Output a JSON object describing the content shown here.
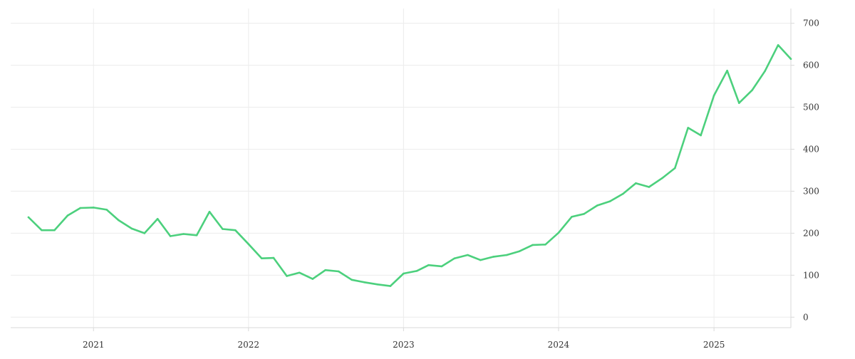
{
  "chart_data": {
    "type": "line",
    "x_tick_labels": [
      "2021",
      "2022",
      "2023",
      "2024",
      "2025"
    ],
    "y_tick_labels": [
      "0",
      "100",
      "200",
      "300",
      "400",
      "500",
      "600",
      "700"
    ],
    "y_ticks": [
      0,
      100,
      200,
      300,
      400,
      500,
      600,
      700
    ],
    "ylim": [
      -25,
      735
    ],
    "xlim": [
      "2020-06-20",
      "2025-07-01"
    ],
    "y_axis_position": "right",
    "grid": true,
    "series": [
      {
        "color": "#4cd07d",
        "points": [
          [
            "2020-08-01",
            238
          ],
          [
            "2020-09-01",
            207
          ],
          [
            "2020-10-01",
            207
          ],
          [
            "2020-11-01",
            242
          ],
          [
            "2020-12-01",
            260
          ],
          [
            "2021-01-01",
            261
          ],
          [
            "2021-02-01",
            256
          ],
          [
            "2021-03-01",
            231
          ],
          [
            "2021-04-01",
            211
          ],
          [
            "2021-05-01",
            200
          ],
          [
            "2021-06-01",
            234
          ],
          [
            "2021-07-01",
            193
          ],
          [
            "2021-08-01",
            198
          ],
          [
            "2021-09-01",
            195
          ],
          [
            "2021-10-01",
            251
          ],
          [
            "2021-11-01",
            210
          ],
          [
            "2021-12-01",
            207
          ],
          [
            "2022-01-01",
            174
          ],
          [
            "2022-02-01",
            140
          ],
          [
            "2022-03-01",
            141
          ],
          [
            "2022-04-01",
            98
          ],
          [
            "2022-05-01",
            106
          ],
          [
            "2022-06-01",
            91
          ],
          [
            "2022-07-01",
            112
          ],
          [
            "2022-08-01",
            109
          ],
          [
            "2022-09-01",
            89
          ],
          [
            "2022-10-01",
            83
          ],
          [
            "2022-11-01",
            78
          ],
          [
            "2022-12-01",
            74
          ],
          [
            "2023-01-01",
            104
          ],
          [
            "2023-02-01",
            110
          ],
          [
            "2023-03-01",
            124
          ],
          [
            "2023-04-01",
            121
          ],
          [
            "2023-05-01",
            140
          ],
          [
            "2023-06-01",
            148
          ],
          [
            "2023-07-01",
            136
          ],
          [
            "2023-08-01",
            144
          ],
          [
            "2023-09-01",
            148
          ],
          [
            "2023-10-01",
            157
          ],
          [
            "2023-11-01",
            172
          ],
          [
            "2023-12-01",
            173
          ],
          [
            "2024-01-01",
            201
          ],
          [
            "2024-02-01",
            239
          ],
          [
            "2024-03-01",
            246
          ],
          [
            "2024-04-01",
            266
          ],
          [
            "2024-05-01",
            276
          ],
          [
            "2024-06-01",
            294
          ],
          [
            "2024-07-01",
            319
          ],
          [
            "2024-08-01",
            310
          ],
          [
            "2024-09-01",
            331
          ],
          [
            "2024-10-01",
            355
          ],
          [
            "2024-11-01",
            451
          ],
          [
            "2024-12-01",
            433
          ],
          [
            "2025-01-01",
            528
          ],
          [
            "2025-02-01",
            587
          ],
          [
            "2025-03-01",
            510
          ],
          [
            "2025-04-01",
            541
          ],
          [
            "2025-05-01",
            586
          ],
          [
            "2025-06-01",
            648
          ],
          [
            "2025-07-01",
            615
          ]
        ]
      }
    ]
  }
}
